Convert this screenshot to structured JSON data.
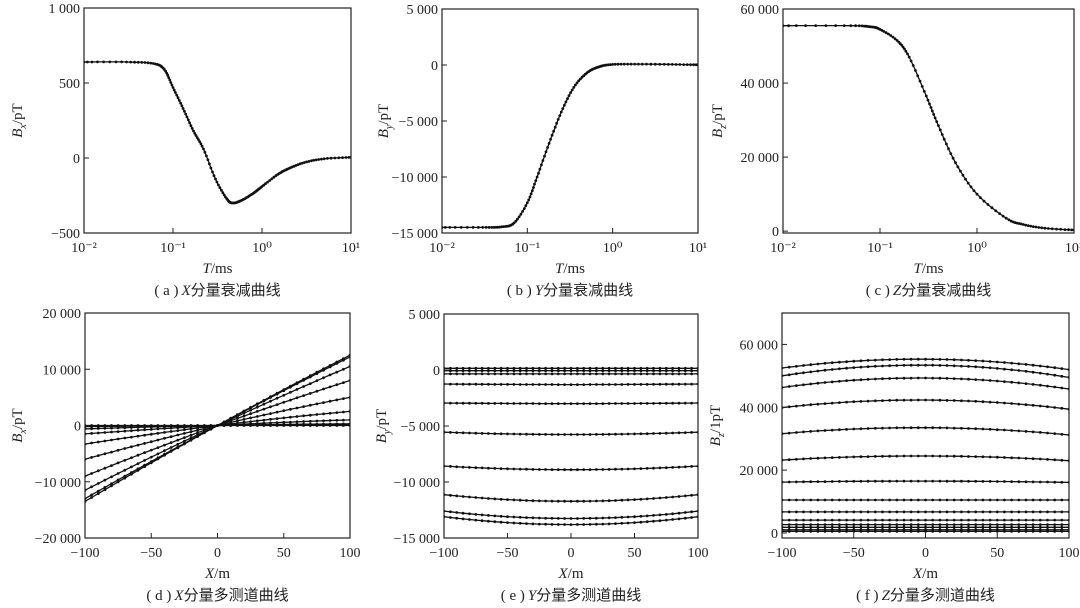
{
  "chart_data": [
    {
      "type": "line",
      "x_scale": "log",
      "caption": {
        "tag": "( a )",
        "var": "X",
        "text": "分量衰减曲线"
      },
      "xlabel": {
        "var": "T",
        "unit": "/ms"
      },
      "ylabel": {
        "var": "B",
        "sub": "x",
        "unit": "/pT"
      },
      "xlim": [
        0.01,
        10
      ],
      "ylim": [
        -500,
        1000
      ],
      "xticks": [
        0.01,
        0.1,
        1,
        10
      ],
      "xtick_labels": [
        "10⁻²",
        "10⁻¹",
        "10⁰",
        "10¹"
      ],
      "yticks": [
        -500,
        0,
        500,
        1000
      ],
      "ytick_labels": [
        "−500",
        "0",
        "500",
        "1 000"
      ],
      "series": [
        {
          "x": [
            0.01,
            0.03,
            0.06,
            0.08,
            0.1,
            0.13,
            0.17,
            0.22,
            0.3,
            0.4,
            0.47,
            0.6,
            0.8,
            1,
            1.5,
            2,
            3,
            5,
            10
          ],
          "y": [
            640,
            640,
            630,
            590,
            470,
            330,
            180,
            60,
            -140,
            -270,
            -300,
            -280,
            -235,
            -190,
            -110,
            -70,
            -30,
            -5,
            5
          ]
        }
      ]
    },
    {
      "type": "line",
      "x_scale": "log",
      "caption": {
        "tag": "( b )",
        "var": "Y",
        "text": "分量衰减曲线"
      },
      "xlabel": {
        "var": "T",
        "unit": "/ms"
      },
      "ylabel": {
        "var": "B",
        "sub": "y",
        "unit": "/pT"
      },
      "xlim": [
        0.01,
        10
      ],
      "ylim": [
        -15000,
        5000
      ],
      "xticks": [
        0.01,
        0.1,
        1,
        10
      ],
      "xtick_labels": [
        "10⁻²",
        "10⁻¹",
        "10⁰",
        "10¹"
      ],
      "yticks": [
        -15000,
        -10000,
        -5000,
        0,
        5000
      ],
      "ytick_labels": [
        "−15 000",
        "−10 000",
        "−5 000",
        "0",
        "5 000"
      ],
      "series": [
        {
          "x": [
            0.01,
            0.03,
            0.05,
            0.07,
            0.1,
            0.13,
            0.18,
            0.25,
            0.35,
            0.5,
            0.7,
            1,
            2,
            5,
            10
          ],
          "y": [
            -14500,
            -14500,
            -14450,
            -14100,
            -12300,
            -10000,
            -7000,
            -4200,
            -2000,
            -700,
            -150,
            50,
            80,
            50,
            20
          ]
        }
      ]
    },
    {
      "type": "line",
      "x_scale": "log",
      "caption": {
        "tag": "( c )",
        "var": "Z",
        "text": "分量衰减曲线"
      },
      "xlabel": {
        "var": "T",
        "unit": "/ms"
      },
      "ylabel": {
        "var": "B",
        "sub": "z",
        "unit": "/pT"
      },
      "xlim": [
        0.01,
        10
      ],
      "ylim": [
        -500,
        60000
      ],
      "xticks": [
        0.01,
        0.1,
        1,
        10
      ],
      "xtick_labels": [
        "10⁻²",
        "10⁻¹",
        "10⁰",
        "10¹"
      ],
      "yticks": [
        0,
        20000,
        40000,
        60000
      ],
      "ytick_labels": [
        "0",
        "20 000",
        "40 000",
        "60 000"
      ],
      "series": [
        {
          "x": [
            0.01,
            0.05,
            0.08,
            0.1,
            0.15,
            0.2,
            0.3,
            0.4,
            0.6,
            1,
            2,
            3,
            5,
            10
          ],
          "y": [
            55500,
            55500,
            55200,
            54500,
            51500,
            47000,
            36500,
            28500,
            18500,
            10000,
            3500,
            1800,
            800,
            300
          ]
        }
      ]
    },
    {
      "type": "line",
      "x_scale": "linear",
      "caption": {
        "tag": "( d )",
        "var": "X",
        "text": "分量多测道曲线"
      },
      "xlabel": {
        "var": "X",
        "unit": "/m"
      },
      "ylabel": {
        "var": "B",
        "sub": "x",
        "unit": "/pT"
      },
      "xlim": [
        -100,
        100
      ],
      "ylim": [
        -20000,
        20000
      ],
      "xticks": [
        -100,
        -50,
        0,
        50,
        100
      ],
      "xtick_labels": [
        "−100",
        "−50",
        "0",
        "50",
        "100"
      ],
      "yticks": [
        -20000,
        -10000,
        0,
        10000,
        20000
      ],
      "ytick_labels": [
        "−20 000",
        "−10 000",
        "0",
        "10 000",
        "20 000"
      ],
      "x": [
        -100,
        0,
        100
      ],
      "series": [
        {
          "y": [
            -13500,
            0,
            12500
          ]
        },
        {
          "y": [
            -13000,
            0,
            12200
          ]
        },
        {
          "y": [
            -11500,
            0,
            10500
          ]
        },
        {
          "y": [
            -9000,
            0,
            8000
          ]
        },
        {
          "y": [
            -6000,
            0,
            5000
          ]
        },
        {
          "y": [
            -3300,
            0,
            2500
          ]
        },
        {
          "y": [
            -1500,
            0,
            1000
          ]
        },
        {
          "y": [
            -600,
            0,
            300
          ]
        },
        {
          "y": [
            -200,
            0,
            50
          ]
        },
        {
          "y": [
            0,
            0,
            0
          ]
        }
      ]
    },
    {
      "type": "line",
      "x_scale": "linear",
      "caption": {
        "tag": "( e )",
        "var": "Y",
        "text": "分量多测道曲线"
      },
      "xlabel": {
        "var": "X",
        "unit": "/m"
      },
      "ylabel": {
        "var": "B",
        "sub": "y",
        "unit": "/pT"
      },
      "xlim": [
        -100,
        100
      ],
      "ylim": [
        -15000,
        5000
      ],
      "xticks": [
        -100,
        -50,
        0,
        50,
        100
      ],
      "xtick_labels": [
        "−100",
        "−50",
        "0",
        "50",
        "100"
      ],
      "yticks": [
        -15000,
        -10000,
        -5000,
        0,
        5000
      ],
      "ytick_labels": [
        "−15 000",
        "−10 000",
        "−5 000",
        "0",
        "5 000"
      ],
      "x": [
        -100,
        0,
        100
      ],
      "series": [
        {
          "y": [
            150,
            150,
            150
          ]
        },
        {
          "y": [
            -60,
            -60,
            -60
          ]
        },
        {
          "y": [
            -350,
            -350,
            -350
          ]
        },
        {
          "y": [
            -1250,
            -1300,
            -1250
          ]
        },
        {
          "y": [
            -2950,
            -3000,
            -2950
          ]
        },
        {
          "y": [
            -5550,
            -5760,
            -5550
          ]
        },
        {
          "y": [
            -8580,
            -8900,
            -8580
          ]
        },
        {
          "y": [
            -11130,
            -11720,
            -11130
          ]
        },
        {
          "y": [
            -12600,
            -13260,
            -12600
          ]
        },
        {
          "y": [
            -13100,
            -13800,
            -13100
          ]
        }
      ]
    },
    {
      "type": "line",
      "x_scale": "linear",
      "caption": {
        "tag": "( f )",
        "var": "Z",
        "text": "分量多测道曲线"
      },
      "xlabel": {
        "var": "X",
        "unit": "/m"
      },
      "ylabel": {
        "var": "B",
        "sub": "z",
        "unit": "/1pT"
      },
      "xlim": [
        -100,
        100
      ],
      "ylim": [
        -1600,
        70000
      ],
      "xticks": [
        -100,
        -50,
        0,
        50,
        100
      ],
      "xtick_labels": [
        "−100",
        "−50",
        "0",
        "50",
        "100"
      ],
      "yticks": [
        0,
        20000,
        40000,
        60000
      ],
      "ytick_labels": [
        "0",
        "20 000",
        "40 000",
        "60 000"
      ],
      "x": [
        -100,
        0,
        100
      ],
      "series": [
        {
          "y": [
            52500,
            55300,
            52000
          ]
        },
        {
          "y": [
            50000,
            53400,
            49500
          ]
        },
        {
          "y": [
            46300,
            49300,
            45800
          ]
        },
        {
          "y": [
            39900,
            42300,
            39400
          ]
        },
        {
          "y": [
            31600,
            33500,
            31200
          ]
        },
        {
          "y": [
            23200,
            24500,
            23000
          ]
        },
        {
          "y": [
            16200,
            16500,
            16100
          ]
        },
        {
          "y": [
            10500,
            10500,
            10500
          ]
        },
        {
          "y": [
            6700,
            6700,
            6700
          ]
        },
        {
          "y": [
            4100,
            4100,
            4100
          ]
        },
        {
          "y": [
            2650,
            2650,
            2650
          ]
        },
        {
          "y": [
            1800,
            1800,
            1800
          ]
        },
        {
          "y": [
            1000,
            1000,
            1000
          ]
        },
        {
          "y": [
            500,
            500,
            500
          ]
        }
      ]
    }
  ]
}
